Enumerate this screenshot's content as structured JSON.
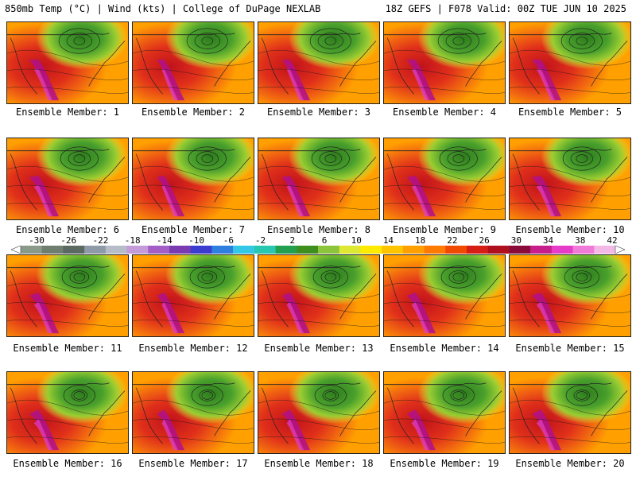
{
  "header": {
    "title_left": "850mb Temp (°C) | Wind (kts) | College of DuPage NEXLAB",
    "title_right": "18Z GEFS | F078 Valid: 00Z TUE JUN 10 2025"
  },
  "colorbar": {
    "tick_labels": [
      "-30",
      "-26",
      "-22",
      "-18",
      "-14",
      "-10",
      "-6",
      "-2",
      "2",
      "6",
      "10",
      "14",
      "18",
      "22",
      "26",
      "30",
      "34",
      "38",
      "42"
    ],
    "colors": [
      "#8a9a8a",
      "#6f7f6f",
      "#5a6a62",
      "#8e9aa8",
      "#b6bcc8",
      "#c49ad8",
      "#a35fc6",
      "#7a3bb0",
      "#3b3bd0",
      "#2e7fe0",
      "#35c8e6",
      "#28c8b0",
      "#22a050",
      "#3f8f1e",
      "#8cc43c",
      "#dce832",
      "#ffea00",
      "#ffc400",
      "#ffa000",
      "#ff7a00",
      "#f04a00",
      "#d61e14",
      "#b0101e",
      "#8a0a3a",
      "#c81e8c",
      "#e63cc8",
      "#f07ad8",
      "#f4b8e6"
    ]
  },
  "panels": [
    {
      "label": "Ensemble Member: 1"
    },
    {
      "label": "Ensemble Member: 2"
    },
    {
      "label": "Ensemble Member: 3"
    },
    {
      "label": "Ensemble Member: 4"
    },
    {
      "label": "Ensemble Member: 5"
    },
    {
      "label": "Ensemble Member: 6"
    },
    {
      "label": "Ensemble Member: 7"
    },
    {
      "label": "Ensemble Member: 8"
    },
    {
      "label": "Ensemble Member: 9"
    },
    {
      "label": "Ensemble Member: 10"
    },
    {
      "label": "Ensemble Member: 11"
    },
    {
      "label": "Ensemble Member: 12"
    },
    {
      "label": "Ensemble Member: 13"
    },
    {
      "label": "Ensemble Member: 14"
    },
    {
      "label": "Ensemble Member: 15"
    },
    {
      "label": "Ensemble Member: 16"
    },
    {
      "label": "Ensemble Member: 17"
    },
    {
      "label": "Ensemble Member: 18"
    },
    {
      "label": "Ensemble Member: 19"
    },
    {
      "label": "Ensemble Member: 20"
    }
  ]
}
